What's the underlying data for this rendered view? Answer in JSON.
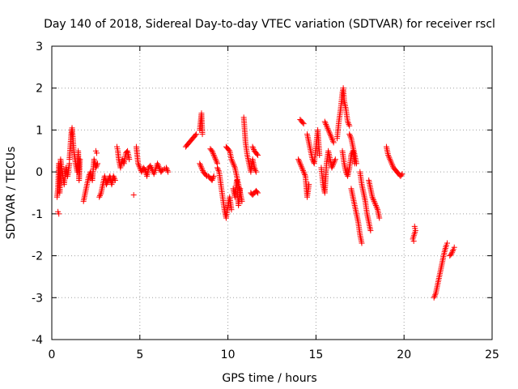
{
  "chart_data": {
    "type": "scatter",
    "title": "Day 140 of 2018, Sidereal Day-to-day VTEC variation (SDTVAR) for receiver rscl",
    "xlabel": "GPS time / hours",
    "ylabel": "SDTVAR / TECUs",
    "xlim": [
      0,
      25
    ],
    "ylim": [
      -4,
      3
    ],
    "xticks": [
      0,
      5,
      10,
      15,
      20,
      25
    ],
    "xtick_labels": [
      "0",
      "5",
      "10",
      "15",
      "20",
      "25"
    ],
    "yticks": [
      -4,
      -3,
      -2,
      -1,
      0,
      1,
      2,
      3
    ],
    "ytick_labels": [
      "-4",
      "-3",
      "-2",
      "-1",
      "0",
      "1",
      "2",
      "3"
    ],
    "grid": true,
    "marker": "plus",
    "marker_color": "#ff0000",
    "segments": [
      {
        "points": [
          [
            0.3,
            -0.6
          ],
          [
            0.35,
            -0.4
          ],
          [
            0.4,
            0.2
          ],
          [
            0.45,
            -0.5
          ],
          [
            0.5,
            0.3
          ],
          [
            0.6,
            0.0
          ],
          [
            0.7,
            -0.3
          ],
          [
            0.8,
            0.1
          ],
          [
            0.9,
            -0.1
          ],
          [
            1.0,
            0.2
          ]
        ]
      },
      {
        "points": [
          [
            0.35,
            -0.95
          ],
          [
            0.4,
            -1.0
          ]
        ]
      },
      {
        "points": [
          [
            1.0,
            0.3
          ],
          [
            1.05,
            0.6
          ],
          [
            1.1,
            0.9
          ],
          [
            1.15,
            1.05
          ],
          [
            1.2,
            0.8
          ],
          [
            1.25,
            0.5
          ],
          [
            1.35,
            0.2
          ],
          [
            1.45,
            0.0
          ],
          [
            1.5,
            0.5
          ],
          [
            1.55,
            -0.2
          ],
          [
            1.6,
            0.3
          ]
        ]
      },
      {
        "points": [
          [
            1.8,
            -0.7
          ],
          [
            1.9,
            -0.5
          ],
          [
            2.0,
            -0.3
          ],
          [
            2.1,
            -0.1
          ],
          [
            2.2,
            0.0
          ],
          [
            2.3,
            -0.2
          ],
          [
            2.4,
            0.3
          ],
          [
            2.5,
            0.1
          ],
          [
            2.6,
            0.2
          ]
        ]
      },
      {
        "points": [
          [
            2.5,
            0.5
          ],
          [
            2.55,
            0.45
          ]
        ]
      },
      {
        "points": [
          [
            2.7,
            -0.6
          ],
          [
            2.8,
            -0.5
          ],
          [
            2.9,
            -0.3
          ],
          [
            3.0,
            -0.1
          ],
          [
            3.1,
            -0.3
          ],
          [
            3.2,
            -0.2
          ],
          [
            3.3,
            -0.1
          ],
          [
            3.4,
            -0.3
          ],
          [
            3.5,
            -0.1
          ],
          [
            3.6,
            -0.2
          ]
        ]
      },
      {
        "points": [
          [
            3.7,
            0.6
          ],
          [
            3.75,
            0.5
          ],
          [
            3.8,
            0.3
          ],
          [
            3.9,
            0.1
          ],
          [
            4.0,
            0.3
          ],
          [
            4.1,
            0.2
          ],
          [
            4.2,
            0.45
          ],
          [
            4.3,
            0.5
          ],
          [
            4.4,
            0.3
          ]
        ]
      },
      {
        "points": [
          [
            4.65,
            -0.55
          ]
        ]
      },
      {
        "points": [
          [
            4.8,
            0.6
          ],
          [
            4.85,
            0.4
          ],
          [
            4.9,
            0.2
          ],
          [
            5.0,
            0.1
          ],
          [
            5.1,
            0.0
          ],
          [
            5.2,
            0.1
          ],
          [
            5.3,
            0.05
          ],
          [
            5.4,
            -0.1
          ],
          [
            5.5,
            0.1
          ],
          [
            5.6,
            0.15
          ],
          [
            5.8,
            -0.05
          ],
          [
            6.0,
            0.2
          ],
          [
            6.1,
            0.1
          ],
          [
            6.2,
            0.0
          ],
          [
            6.3,
            0.05
          ],
          [
            6.5,
            0.1
          ],
          [
            6.6,
            0.0
          ]
        ]
      },
      {
        "points": [
          [
            7.6,
            0.6
          ],
          [
            7.7,
            0.65
          ],
          [
            7.8,
            0.7
          ],
          [
            7.9,
            0.75
          ],
          [
            8.0,
            0.8
          ],
          [
            8.1,
            0.85
          ],
          [
            8.2,
            0.9
          ]
        ]
      },
      {
        "points": [
          [
            8.4,
            1.0
          ],
          [
            8.45,
            1.2
          ],
          [
            8.5,
            1.4
          ],
          [
            8.55,
            0.9
          ]
        ]
      },
      {
        "points": [
          [
            8.4,
            0.2
          ],
          [
            8.5,
            0.1
          ],
          [
            8.6,
            0.0
          ],
          [
            8.7,
            -0.05
          ],
          [
            8.8,
            -0.1
          ],
          [
            8.9,
            -0.1
          ],
          [
            9.0,
            -0.15
          ],
          [
            9.1,
            -0.2
          ],
          [
            9.2,
            -0.1
          ]
        ]
      },
      {
        "points": [
          [
            9.0,
            0.55
          ],
          [
            9.1,
            0.5
          ],
          [
            9.2,
            0.4
          ],
          [
            9.3,
            0.3
          ],
          [
            9.4,
            0.2
          ]
        ]
      },
      {
        "points": [
          [
            9.4,
            0.1
          ],
          [
            9.5,
            0.0
          ],
          [
            9.6,
            -0.3
          ],
          [
            9.7,
            -0.6
          ],
          [
            9.8,
            -0.9
          ],
          [
            9.9,
            -1.1
          ],
          [
            10.0,
            -0.8
          ],
          [
            10.1,
            -0.6
          ],
          [
            10.2,
            -0.9
          ]
        ]
      },
      {
        "points": [
          [
            9.9,
            0.6
          ],
          [
            10.0,
            0.55
          ],
          [
            10.1,
            0.5
          ],
          [
            10.2,
            0.3
          ],
          [
            10.3,
            0.2
          ],
          [
            10.4,
            0.1
          ],
          [
            10.5,
            -0.1
          ],
          [
            10.6,
            -0.3
          ],
          [
            10.7,
            -0.5
          ],
          [
            10.8,
            -0.7
          ]
        ]
      },
      {
        "points": [
          [
            10.3,
            -0.4
          ],
          [
            10.4,
            -0.6
          ],
          [
            10.5,
            -0.2
          ],
          [
            10.6,
            -0.8
          ],
          [
            10.7,
            -0.4
          ]
        ]
      },
      {
        "points": [
          [
            10.9,
            1.3
          ],
          [
            10.95,
            1.0
          ],
          [
            11.0,
            0.7
          ],
          [
            11.1,
            0.4
          ],
          [
            11.2,
            0.2
          ],
          [
            11.3,
            0.0
          ],
          [
            11.4,
            0.3
          ],
          [
            11.5,
            0.1
          ],
          [
            11.6,
            0.0
          ]
        ]
      },
      {
        "points": [
          [
            11.4,
            0.6
          ],
          [
            11.5,
            0.5
          ],
          [
            11.6,
            0.45
          ],
          [
            11.7,
            0.4
          ]
        ]
      },
      {
        "points": [
          [
            11.3,
            -0.5
          ],
          [
            11.4,
            -0.55
          ],
          [
            11.5,
            -0.5
          ],
          [
            11.6,
            -0.45
          ],
          [
            11.7,
            -0.5
          ]
        ]
      },
      {
        "points": [
          [
            14.0,
            0.3
          ],
          [
            14.1,
            0.2
          ],
          [
            14.2,
            0.1
          ],
          [
            14.3,
            0.0
          ],
          [
            14.4,
            -0.1
          ],
          [
            14.5,
            -0.6
          ],
          [
            14.6,
            -0.3
          ]
        ]
      },
      {
        "points": [
          [
            14.1,
            1.25
          ],
          [
            14.2,
            1.2
          ],
          [
            14.3,
            1.15
          ]
        ]
      },
      {
        "points": [
          [
            14.5,
            0.9
          ],
          [
            14.6,
            0.7
          ],
          [
            14.7,
            0.5
          ],
          [
            14.8,
            0.3
          ],
          [
            14.9,
            0.2
          ],
          [
            15.0,
            0.6
          ],
          [
            15.1,
            1.0
          ],
          [
            15.2,
            0.4
          ]
        ]
      },
      {
        "points": [
          [
            15.3,
            0.1
          ],
          [
            15.4,
            -0.3
          ],
          [
            15.5,
            -0.5
          ],
          [
            15.6,
            0.2
          ],
          [
            15.7,
            0.5
          ],
          [
            15.8,
            0.3
          ],
          [
            15.9,
            0.1
          ],
          [
            16.0,
            0.2
          ],
          [
            16.1,
            0.3
          ]
        ]
      },
      {
        "points": [
          [
            15.5,
            1.2
          ],
          [
            15.6,
            1.1
          ],
          [
            15.7,
            1.0
          ],
          [
            15.8,
            0.9
          ],
          [
            15.9,
            0.8
          ],
          [
            16.0,
            0.7
          ]
        ]
      },
      {
        "points": [
          [
            16.2,
            0.8
          ],
          [
            16.3,
            1.2
          ],
          [
            16.4,
            1.5
          ],
          [
            16.5,
            1.9
          ],
          [
            16.55,
            2.0
          ],
          [
            16.6,
            1.7
          ],
          [
            16.7,
            1.5
          ],
          [
            16.8,
            1.2
          ],
          [
            16.9,
            1.1
          ]
        ]
      },
      {
        "points": [
          [
            16.5,
            0.5
          ],
          [
            16.6,
            0.2
          ],
          [
            16.7,
            0.0
          ],
          [
            16.8,
            -0.1
          ],
          [
            16.9,
            0.1
          ],
          [
            17.0,
            0.4
          ],
          [
            17.1,
            0.5
          ],
          [
            17.2,
            0.2
          ]
        ]
      },
      {
        "points": [
          [
            16.9,
            0.9
          ],
          [
            17.0,
            0.8
          ],
          [
            17.1,
            0.6
          ],
          [
            17.2,
            0.4
          ],
          [
            17.3,
            0.2
          ]
        ]
      },
      {
        "points": [
          [
            17.0,
            -0.4
          ],
          [
            17.1,
            -0.6
          ],
          [
            17.2,
            -0.8
          ],
          [
            17.3,
            -1.0
          ],
          [
            17.4,
            -1.2
          ],
          [
            17.5,
            -1.5
          ],
          [
            17.6,
            -1.7
          ]
        ]
      },
      {
        "points": [
          [
            17.5,
            0.0
          ],
          [
            17.6,
            -0.3
          ],
          [
            17.7,
            -0.5
          ],
          [
            17.8,
            -0.7
          ],
          [
            17.9,
            -1.0
          ],
          [
            18.0,
            -1.2
          ],
          [
            18.1,
            -1.4
          ]
        ]
      },
      {
        "points": [
          [
            18.0,
            -0.2
          ],
          [
            18.1,
            -0.4
          ],
          [
            18.2,
            -0.6
          ],
          [
            18.3,
            -0.7
          ],
          [
            18.4,
            -0.8
          ],
          [
            18.5,
            -0.9
          ],
          [
            18.6,
            -1.1
          ]
        ]
      },
      {
        "points": [
          [
            19.0,
            0.6
          ],
          [
            19.1,
            0.4
          ],
          [
            19.2,
            0.3
          ],
          [
            19.3,
            0.2
          ],
          [
            19.4,
            0.1
          ],
          [
            19.5,
            0.05
          ],
          [
            19.6,
            0.0
          ],
          [
            19.7,
            -0.05
          ],
          [
            19.8,
            -0.1
          ],
          [
            19.9,
            -0.05
          ]
        ]
      },
      {
        "points": [
          [
            20.6,
            -1.3
          ],
          [
            20.65,
            -1.4
          ],
          [
            20.5,
            -1.6
          ],
          [
            20.55,
            -1.65
          ]
        ]
      },
      {
        "points": [
          [
            21.7,
            -3.0
          ],
          [
            21.8,
            -2.9
          ],
          [
            21.9,
            -2.7
          ],
          [
            22.0,
            -2.5
          ],
          [
            22.1,
            -2.3
          ],
          [
            22.2,
            -2.1
          ],
          [
            22.3,
            -1.9
          ],
          [
            22.4,
            -1.75
          ],
          [
            22.45,
            -1.7
          ]
        ]
      },
      {
        "points": [
          [
            22.6,
            -2.0
          ],
          [
            22.7,
            -1.95
          ],
          [
            22.8,
            -1.85
          ],
          [
            22.85,
            -1.8
          ]
        ]
      }
    ]
  }
}
